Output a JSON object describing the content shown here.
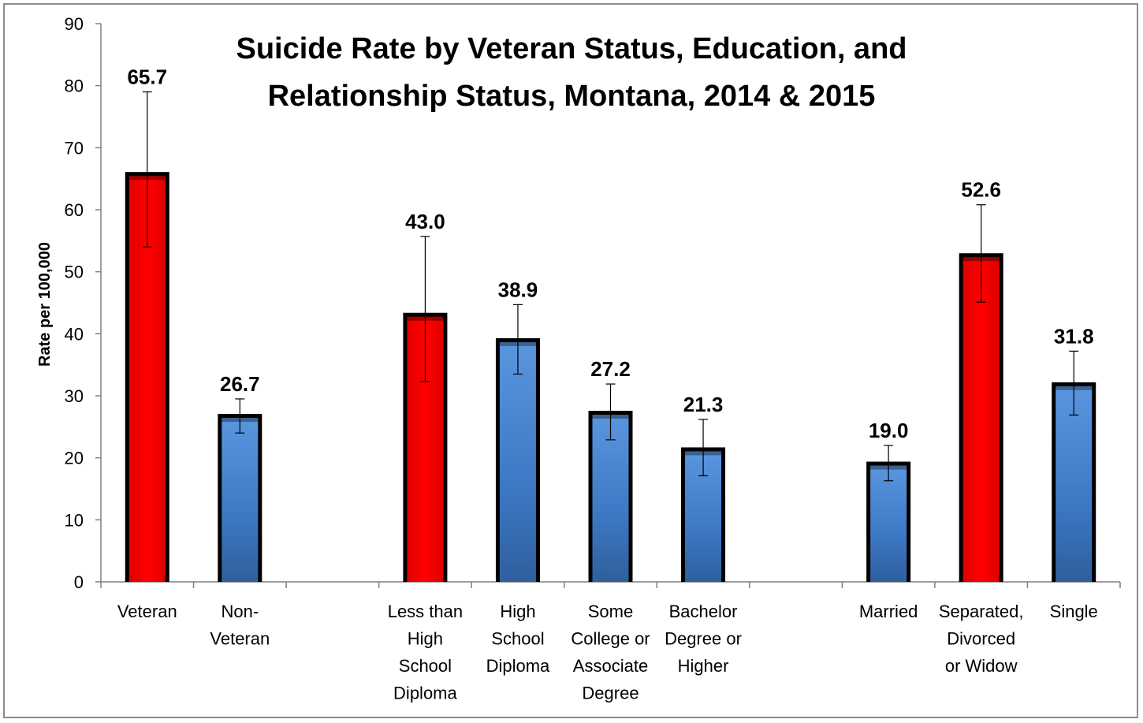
{
  "chart_data": {
    "type": "bar",
    "title_lines": [
      "Suicide Rate by Veteran Status, Education, and",
      "Relationship Status, Montana, 2014 & 2015"
    ],
    "ylabel": "Rate per 100,000",
    "xlabel": "",
    "ylim": [
      0,
      90
    ],
    "yticks": [
      "0",
      "10",
      "20",
      "30",
      "40",
      "50",
      "60",
      "70",
      "80",
      "90"
    ],
    "grid": false,
    "legend": "none",
    "colors": {
      "highlight": "#ff0000",
      "default": "#3f7fd0",
      "outline": "#000000"
    },
    "slots": [
      {
        "label_lines": [
          "Veteran"
        ],
        "value": 65.7,
        "label": "65.7",
        "error": [
          54,
          79
        ],
        "highlight": true
      },
      {
        "label_lines": [
          "Non-",
          "Veteran"
        ],
        "value": 26.7,
        "label": "26.7",
        "error": [
          24,
          29.5
        ],
        "highlight": false
      },
      {
        "label_lines": [],
        "value": null
      },
      {
        "label_lines": [
          "Less than",
          "High",
          "School",
          "Diploma"
        ],
        "value": 43.0,
        "label": "43.0",
        "error": [
          32.3,
          55.7
        ],
        "highlight": true
      },
      {
        "label_lines": [
          "High",
          "School",
          "Diploma"
        ],
        "value": 38.9,
        "label": "38.9",
        "error": [
          33.5,
          44.7
        ],
        "highlight": false
      },
      {
        "label_lines": [
          "Some",
          "College or",
          "Associate",
          "Degree"
        ],
        "value": 27.2,
        "label": "27.2",
        "error": [
          22.9,
          31.9
        ],
        "highlight": false
      },
      {
        "label_lines": [
          "Bachelor",
          "Degree or",
          "Higher"
        ],
        "value": 21.3,
        "label": "21.3",
        "error": [
          17.1,
          26.2
        ],
        "highlight": false
      },
      {
        "label_lines": [],
        "value": null
      },
      {
        "label_lines": [
          "Married"
        ],
        "value": 19.0,
        "label": "19.0",
        "error": [
          16.3,
          22.0
        ],
        "highlight": false
      },
      {
        "label_lines": [
          "Separated,",
          "Divorced",
          "or Widow"
        ],
        "value": 52.6,
        "label": "52.6",
        "error": [
          45.1,
          60.8
        ],
        "highlight": true
      },
      {
        "label_lines": [
          "Single"
        ],
        "value": 31.8,
        "label": "31.8",
        "error": [
          26.9,
          37.2
        ],
        "highlight": false
      }
    ]
  }
}
